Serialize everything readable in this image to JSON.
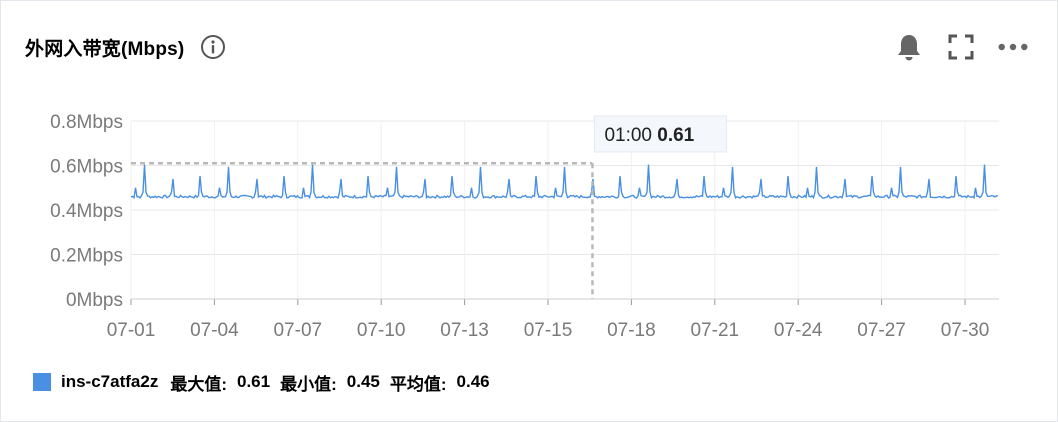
{
  "header": {
    "title": "外网入带宽(Mbps)",
    "info_icon": "info-icon",
    "tools": [
      "bell-icon",
      "fullscreen-icon",
      "more-icon"
    ]
  },
  "chart_data": {
    "type": "line",
    "ylabel": "",
    "yticks": [
      "0Mbps",
      "0.2Mbps",
      "0.4Mbps",
      "0.6Mbps",
      "0.8Mbps"
    ],
    "ylim": [
      0,
      0.8
    ],
    "xticks": [
      "07-01",
      "07-04",
      "07-07",
      "07-10",
      "07-13",
      "07-15",
      "07-18",
      "07-21",
      "07-24",
      "07-27",
      "07-30"
    ],
    "grid": true,
    "series": [
      {
        "name": "ins-c7atfa2z",
        "color": "#4a90e2",
        "baseline": 0.46,
        "daily_peak_values": [
          0.61,
          0.6,
          0.6,
          0.6,
          0.6,
          0.6,
          0.61,
          0.6,
          0.6,
          0.6,
          0.6,
          0.6,
          0.6,
          0.6,
          0.6,
          0.6,
          0.6,
          0.6,
          0.61,
          0.6,
          0.6,
          0.6,
          0.6,
          0.6,
          0.6,
          0.6,
          0.6,
          0.6,
          0.6,
          0.6,
          0.61
        ]
      }
    ],
    "tooltip": {
      "time": "01:00",
      "value": "0.61"
    },
    "legend": {
      "series_name": "ins-c7atfa2z",
      "max_label": "最大值:",
      "max_value": "0.61",
      "min_label": "最小值:",
      "min_value": "0.45",
      "avg_label": "平均值:",
      "avg_value": "0.46"
    }
  }
}
